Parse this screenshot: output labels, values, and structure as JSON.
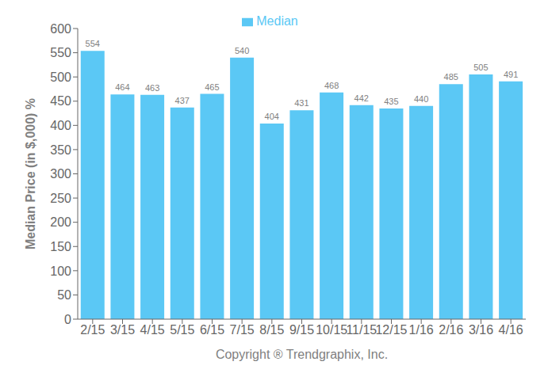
{
  "chart_data": {
    "type": "bar",
    "categories": [
      "2/15",
      "3/15",
      "4/15",
      "5/15",
      "6/15",
      "7/15",
      "8/15",
      "9/15",
      "10/15",
      "11/15",
      "12/15",
      "1/16",
      "2/16",
      "3/16",
      "4/16"
    ],
    "series": [
      {
        "name": "Median",
        "color": "#5BC8F5",
        "values": [
          554,
          464,
          463,
          437,
          465,
          540,
          404,
          431,
          468,
          442,
          435,
          440,
          485,
          505,
          491
        ]
      }
    ],
    "xlabel": "Copyright ® Trendgraphix, Inc.",
    "ylabel": "Median Price (in $,000) %",
    "ylim": [
      0,
      600
    ],
    "yticks": [
      0,
      50,
      100,
      150,
      200,
      250,
      300,
      350,
      400,
      450,
      500,
      550,
      600
    ],
    "grid": false,
    "legend": "top",
    "data_labels": true
  }
}
